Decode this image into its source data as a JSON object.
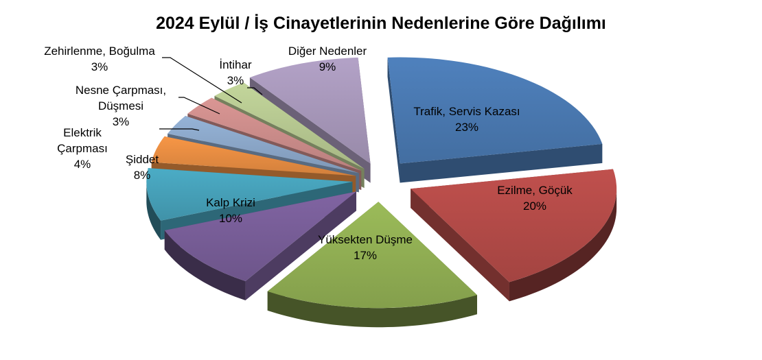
{
  "chart_data": {
    "type": "pie",
    "title": "2024 Eylül / İş Cinayetlerinin Nedenlerine Göre Dağılımı",
    "unit": "%",
    "three_d": true,
    "exploded": true,
    "slices": [
      {
        "label": "Trafik, Servis Kazası",
        "value": 23,
        "value_text": "23%",
        "color": "#4F81BD"
      },
      {
        "label": "Ezilme, Göçük",
        "value": 20,
        "value_text": "20%",
        "color": "#C0504D"
      },
      {
        "label": "Yüksekten Düşme",
        "value": 17,
        "value_text": "17%",
        "color": "#9BBB59"
      },
      {
        "label": "Kalp Krizi",
        "value": 10,
        "value_text": "10%",
        "color": "#8064A2"
      },
      {
        "label": "Şiddet",
        "value": 8,
        "value_text": "8%",
        "color": "#4BACC6"
      },
      {
        "label": "Elektrik Çarpması",
        "value": 4,
        "value_text": "4%",
        "color": "#F79646"
      },
      {
        "label": "Nesne Çarpması, Düşmesi",
        "value": 3,
        "value_text": "3%",
        "color": "#95B3D7"
      },
      {
        "label": "Zehirlenme, Boğulma",
        "value": 3,
        "value_text": "3%",
        "color": "#DA9694"
      },
      {
        "label": "İntihar",
        "value": 3,
        "value_text": "3%",
        "color": "#C3D69B"
      },
      {
        "label": "Diğer Nedenler",
        "value": 9,
        "value_text": "9%",
        "color": "#B3A2C7"
      }
    ]
  }
}
